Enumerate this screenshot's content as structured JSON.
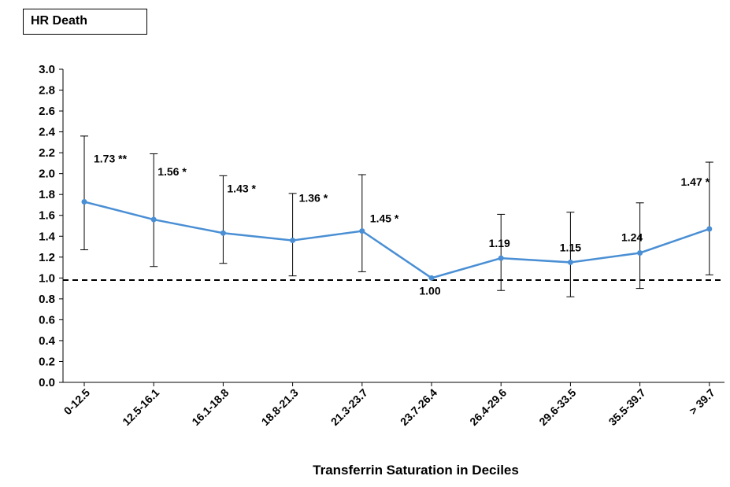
{
  "chart_data": {
    "type": "line",
    "title": "HR Death",
    "xlabel": "Transferrin Saturation in Deciles",
    "ylabel": "",
    "categories": [
      "0-12.5",
      "12.5-16.1",
      "16.1-18.8",
      "18.8-21.3",
      "21.3-23.7",
      "23.7-26.4",
      "26.4-29.6",
      "29.6-33.5",
      "35.5-39.7",
      "> 39.7"
    ],
    "series": [
      {
        "values": [
          1.73,
          1.56,
          1.43,
          1.36,
          1.45,
          1.0,
          1.19,
          1.15,
          1.24,
          1.47
        ],
        "ci_lower": [
          1.27,
          1.11,
          1.14,
          1.02,
          1.06,
          1.0,
          0.88,
          0.82,
          0.9,
          1.03
        ],
        "ci_upper": [
          2.36,
          2.19,
          1.98,
          1.81,
          1.99,
          1.0,
          1.61,
          1.63,
          1.72,
          2.11
        ],
        "labels": [
          "1.73 **",
          "1.56 *",
          "1.43 *",
          "1.36 *",
          "1.45 *",
          "1.00",
          "1.19",
          "1.15",
          "1.24",
          "1.47 *"
        ],
        "color": "#4a8fd4"
      }
    ],
    "yticks": [
      "0.0",
      "0.2",
      "0.4",
      "0.6",
      "0.8",
      "1.0",
      "1.2",
      "1.4",
      "1.6",
      "1.8",
      "2.0",
      "2.2",
      "2.4",
      "2.6",
      "2.8",
      "3.0"
    ],
    "ylim": [
      0,
      3.0
    ],
    "reference_line": {
      "y": 0.98,
      "style": "dashed",
      "color": "#000000"
    },
    "grid": false,
    "legend": "none"
  }
}
